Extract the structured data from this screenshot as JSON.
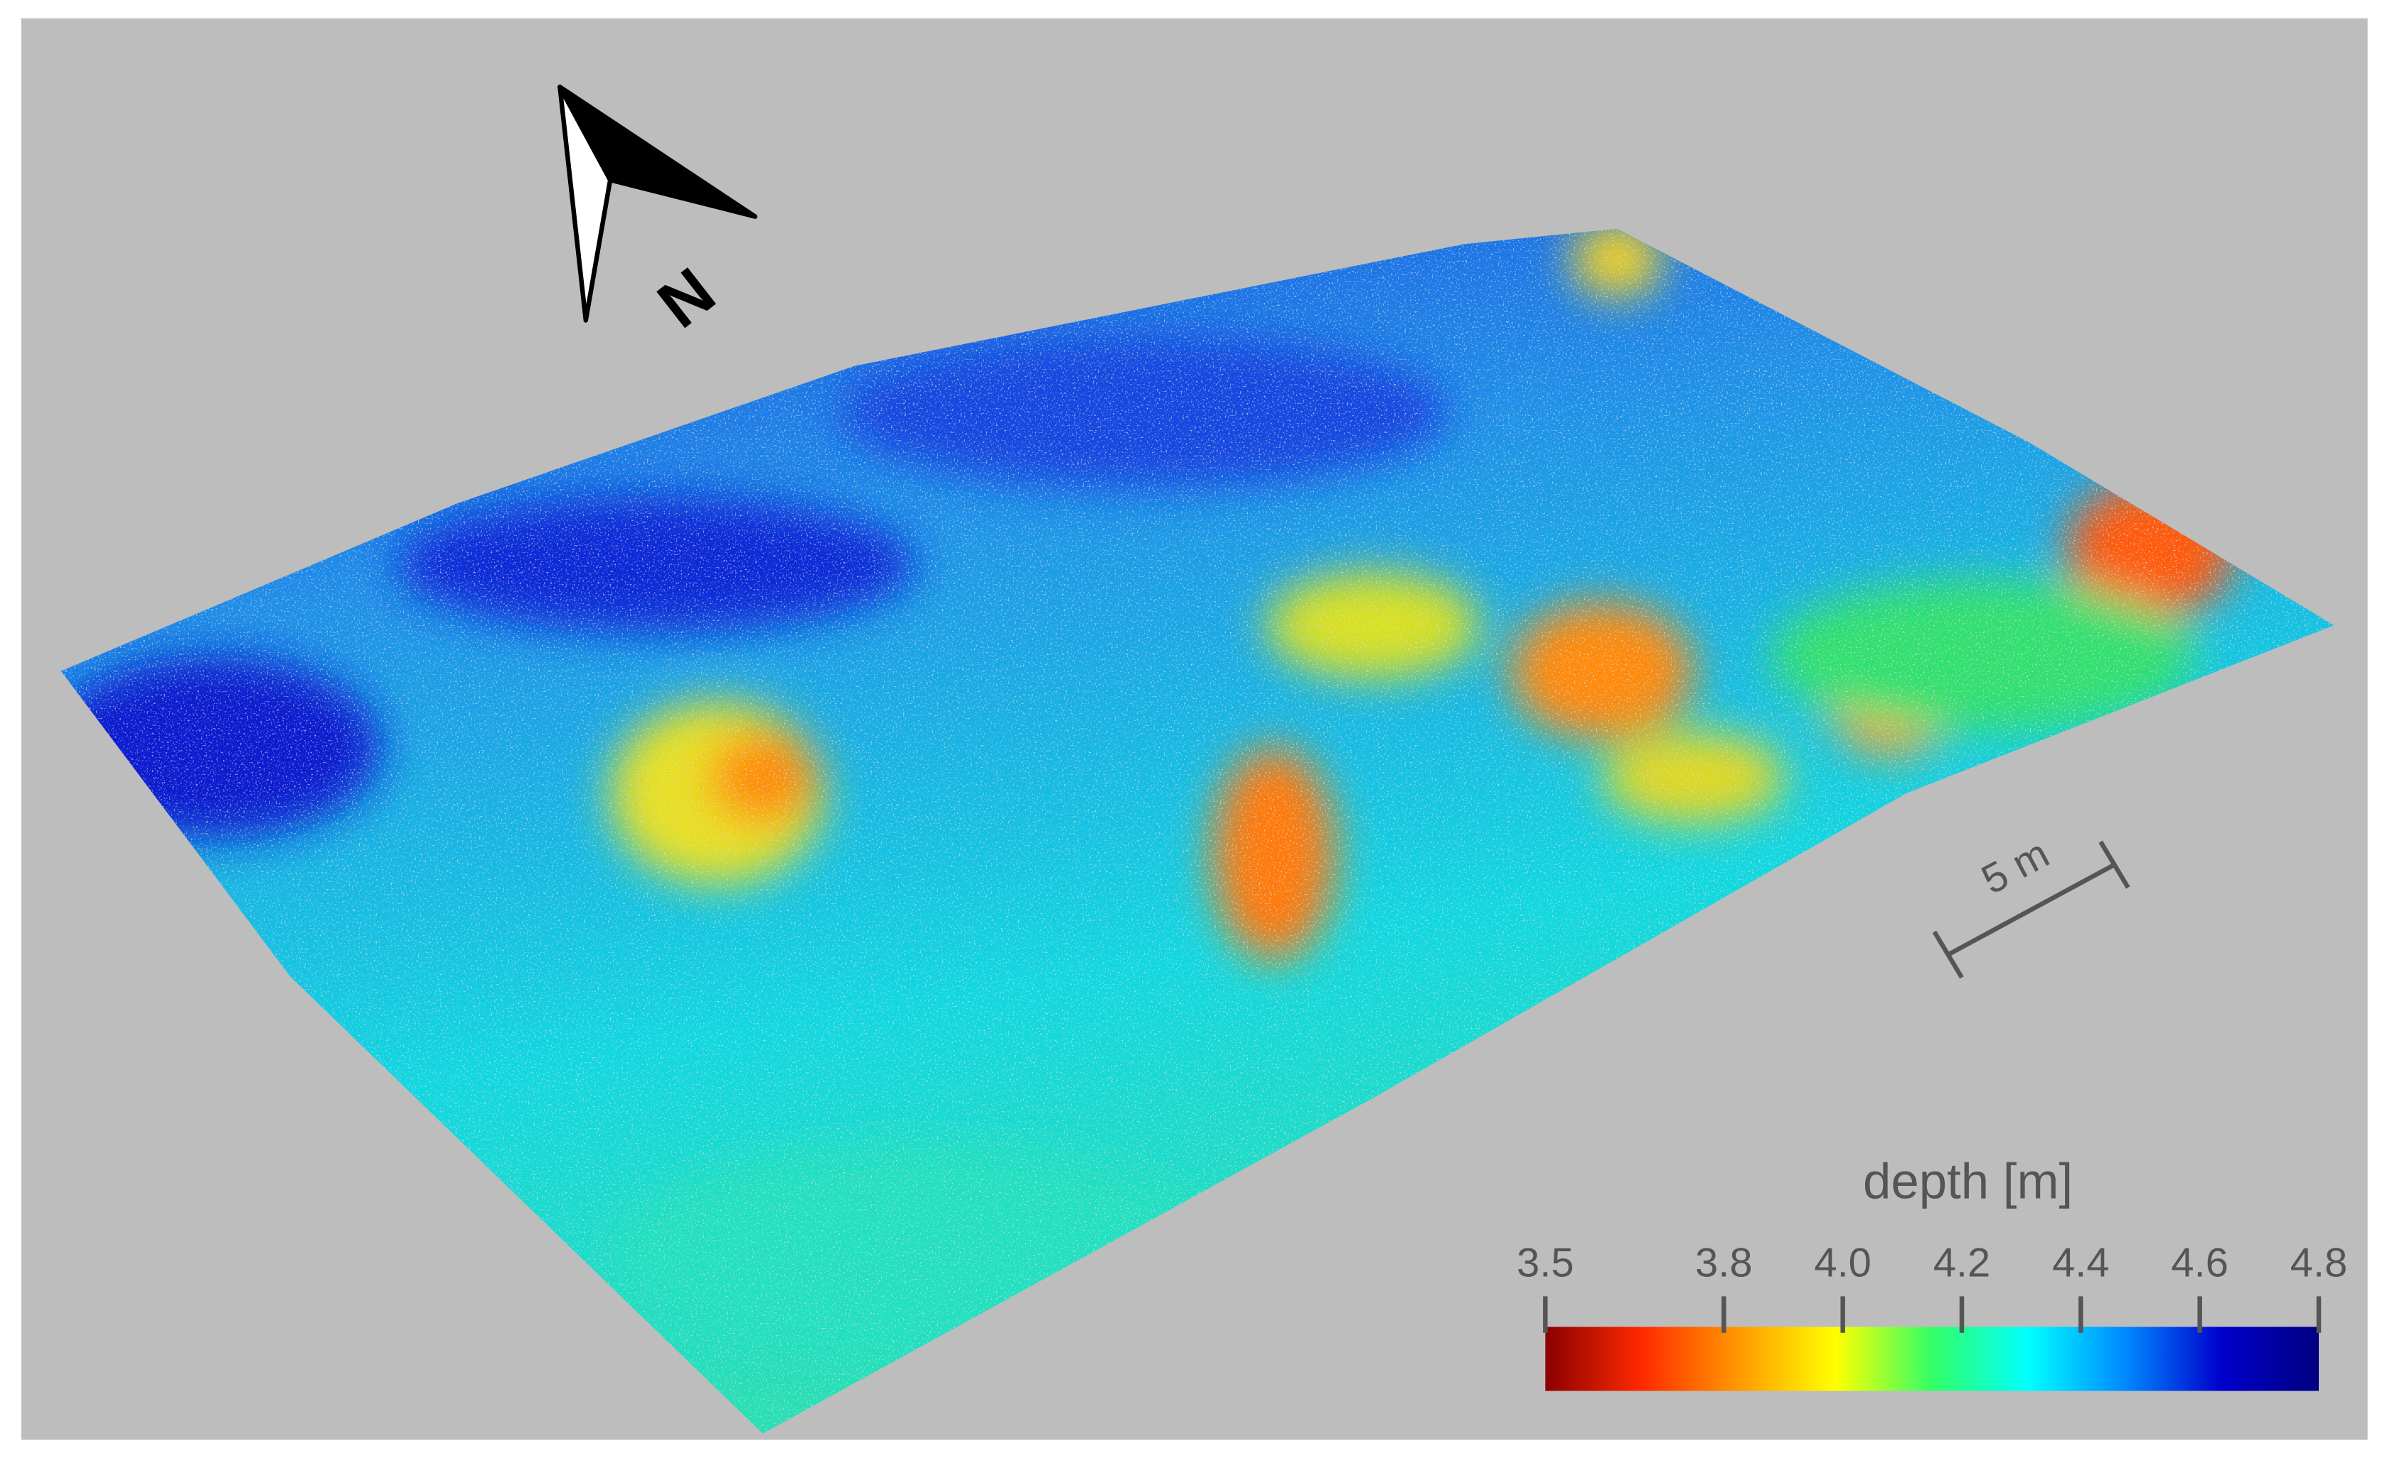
{
  "colorbar": {
    "title": "depth [m]",
    "lim": [
      3.5,
      4.8
    ],
    "ticks": [
      3.5,
      3.8,
      {
        "value": 4,
        "label": "4.0"
      },
      4.2,
      4.4,
      4.6,
      4.8
    ],
    "colormap": [
      "#8b0000",
      "#ff2a00",
      "#ff9900",
      "#ffff00",
      "#33ff66",
      "#00ffff",
      "#0088ff",
      "#0000cc",
      "#000080"
    ]
  },
  "north_arrow": {
    "label": "N"
  },
  "scale_bar": {
    "label": "5 m"
  }
}
